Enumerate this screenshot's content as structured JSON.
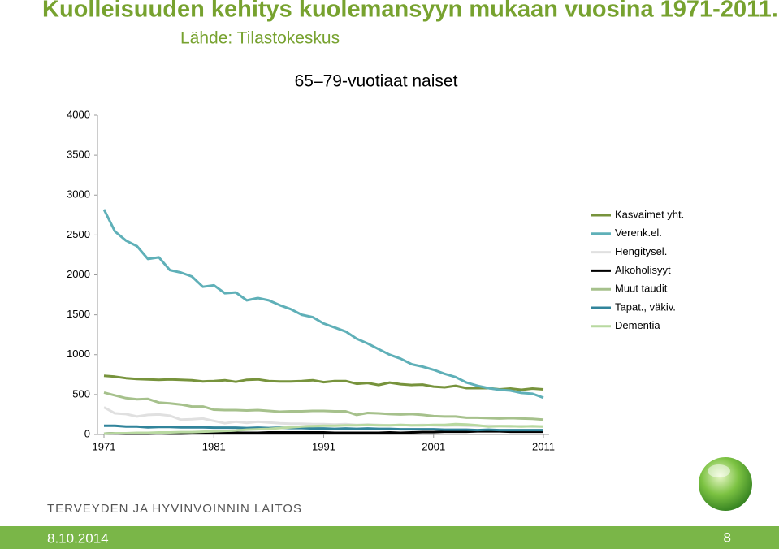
{
  "slide": {
    "title": "Kuolleisuuden kehitys kuolemansyyn mukaan vuosina 1971-2011.",
    "source": "Lähde: Tilastokeskus",
    "org": "TERVEYDEN JA HYVINVOINNIN LAITOS",
    "date": "8.10.2014",
    "page": "8"
  },
  "chart_data": {
    "type": "line",
    "title": "65–79-vuotiaat naiset",
    "x": [
      1971,
      1972,
      1973,
      1974,
      1975,
      1976,
      1977,
      1978,
      1979,
      1980,
      1981,
      1982,
      1983,
      1984,
      1985,
      1986,
      1987,
      1988,
      1989,
      1990,
      1991,
      1992,
      1993,
      1994,
      1995,
      1996,
      1997,
      1998,
      1999,
      2000,
      2001,
      2002,
      2003,
      2004,
      2005,
      2006,
      2007,
      2008,
      2009,
      2010,
      2011
    ],
    "xlim": [
      1971,
      2011
    ],
    "xticks": [
      1971,
      1981,
      1991,
      2001,
      2011
    ],
    "ylim": [
      0,
      4000
    ],
    "yticks": [
      0,
      500,
      1000,
      1500,
      2000,
      2500,
      3000,
      3500,
      4000
    ],
    "grid": false,
    "legend": "right",
    "series": [
      {
        "name": "Kasvaimet yht.",
        "color": "#77933c",
        "values": [
          735,
          725,
          705,
          695,
          690,
          685,
          690,
          685,
          680,
          665,
          670,
          680,
          660,
          685,
          690,
          670,
          665,
          665,
          670,
          680,
          655,
          670,
          670,
          635,
          645,
          620,
          650,
          630,
          620,
          625,
          600,
          590,
          610,
          580,
          580,
          580,
          565,
          575,
          560,
          575,
          565
        ]
      },
      {
        "name": "Verenk.el.",
        "color": "#5fb0b8",
        "values": [
          2820,
          2545,
          2430,
          2360,
          2200,
          2220,
          2060,
          2030,
          1980,
          1850,
          1870,
          1770,
          1780,
          1680,
          1710,
          1680,
          1620,
          1570,
          1500,
          1470,
          1390,
          1340,
          1290,
          1200,
          1140,
          1070,
          1000,
          950,
          880,
          850,
          810,
          760,
          720,
          650,
          610,
          580,
          560,
          550,
          520,
          510,
          460
        ]
      },
      {
        "name": "Hengitysel.",
        "color": "#e0e0e0",
        "values": [
          340,
          265,
          255,
          225,
          245,
          250,
          235,
          185,
          190,
          200,
          170,
          140,
          160,
          145,
          160,
          150,
          140,
          135,
          135,
          130,
          130,
          125,
          130,
          120,
          125,
          120,
          115,
          120,
          115,
          120,
          115,
          110,
          115,
          110,
          105,
          110,
          105,
          100,
          105,
          100,
          100
        ]
      },
      {
        "name": "Alkoholisyyt",
        "color": "#000000",
        "values": [
          10,
          15,
          10,
          10,
          10,
          15,
          10,
          10,
          15,
          15,
          15,
          15,
          20,
          20,
          20,
          25,
          25,
          25,
          25,
          25,
          25,
          20,
          20,
          20,
          20,
          20,
          25,
          20,
          25,
          30,
          30,
          35,
          35,
          35,
          40,
          40,
          40,
          35,
          35,
          35,
          35
        ]
      },
      {
        "name": "Muut taudit",
        "color": "#a6c18c",
        "values": [
          525,
          490,
          455,
          440,
          445,
          400,
          390,
          375,
          350,
          350,
          310,
          305,
          305,
          300,
          305,
          295,
          285,
          290,
          290,
          295,
          295,
          290,
          290,
          245,
          270,
          265,
          255,
          250,
          255,
          245,
          230,
          225,
          225,
          210,
          210,
          205,
          200,
          205,
          200,
          195,
          185
        ]
      },
      {
        "name": "Tapat., väkiv.",
        "color": "#31849b",
        "values": [
          110,
          110,
          100,
          100,
          90,
          95,
          95,
          90,
          90,
          90,
          85,
          85,
          85,
          80,
          85,
          80,
          85,
          80,
          80,
          75,
          75,
          70,
          75,
          70,
          75,
          70,
          70,
          65,
          65,
          65,
          65,
          60,
          60,
          60,
          55,
          60,
          55,
          55,
          55,
          55,
          55
        ]
      },
      {
        "name": "Dementia",
        "color": "#b8d9a0",
        "values": [
          10,
          15,
          15,
          20,
          20,
          25,
          25,
          30,
          30,
          35,
          40,
          45,
          50,
          60,
          65,
          70,
          80,
          90,
          100,
          105,
          110,
          110,
          115,
          115,
          120,
          115,
          115,
          120,
          115,
          115,
          120,
          120,
          130,
          125,
          115,
          100,
          105,
          105,
          100,
          105,
          100
        ]
      }
    ]
  }
}
